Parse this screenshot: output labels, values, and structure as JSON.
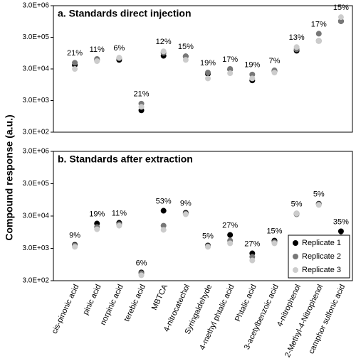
{
  "chart_data": [
    {
      "type": "scatter",
      "title": "a. Standards direct injection",
      "ylabel": "Compound response (a.u.)",
      "log_y": true,
      "ylim": [
        300,
        3000000
      ],
      "yticks": [
        {
          "value": 300,
          "label": "3.0E+02"
        },
        {
          "value": 3000,
          "label": "3.0E+03"
        },
        {
          "value": 30000,
          "label": "3.0E+04"
        },
        {
          "value": 300000,
          "label": "3.0E+05"
        },
        {
          "value": 3000000,
          "label": "3.0E+06"
        }
      ],
      "annotations": [
        "21%",
        "11%",
        "6%",
        "21%",
        "12%",
        "15%",
        "19%",
        "17%",
        "19%",
        "7%",
        "13%",
        "17%",
        "15%"
      ],
      "series": [
        {
          "name": "Replicate 1",
          "color": "#000000",
          "values": [
            40000,
            58000,
            58000,
            1470,
            78000,
            75000,
            21000,
            29000,
            13000,
            26000,
            113000,
            230000,
            970000
          ]
        },
        {
          "name": "Replicate 2",
          "color": "#777777",
          "values": [
            47000,
            62000,
            65000,
            2400,
            97000,
            75000,
            23000,
            30000,
            20000,
            27000,
            125000,
            390000,
            970000
          ]
        },
        {
          "name": "Replicate 3",
          "color": "#cccccc",
          "values": [
            30000,
            53000,
            68000,
            1900,
            108000,
            58000,
            15000,
            22000,
            15000,
            23000,
            147000,
            230000,
            1300000
          ]
        }
      ]
    },
    {
      "type": "scatter",
      "title": "b. Standards after extraction",
      "log_y": true,
      "legend": "lower right",
      "ylim": [
        300,
        3000000
      ],
      "yticks": [
        {
          "value": 300,
          "label": "3.0E+02"
        },
        {
          "value": 3000,
          "label": "3.0E+03"
        },
        {
          "value": 30000,
          "label": "3.0E+04"
        },
        {
          "value": 300000,
          "label": "3.0E+05"
        },
        {
          "value": 3000000,
          "label": "3.0E+06"
        }
      ],
      "categories": [
        "cis-pinonic acid",
        "pinic acid",
        "norpinic acid",
        "terebic acid",
        "MBTCA",
        "4-nitrocatechol",
        "Syringaldehyde",
        "4-methyl phtalic acid",
        "Phtalic acid",
        "3-acetylbenzoic acid",
        "4-nitrophenol",
        "2-Methyl-4-Nitrophenol",
        "camphor sulfonic acid"
      ],
      "annotations": [
        "9%",
        "19%",
        "11%",
        "6%",
        "53%",
        "9%",
        "5%",
        "27%",
        "27%",
        "15%",
        "5%",
        "5%",
        "35%"
      ],
      "series": [
        {
          "name": "Replicate 1",
          "color": "#000000",
          "values": [
            3870,
            17600,
            18500,
            540,
            43800,
            37700,
            3680,
            7800,
            2100,
            5200,
            35700,
            72000,
            10100
          ]
        },
        {
          "name": "Replicate 2",
          "color": "#777777",
          "values": [
            3680,
            13700,
            16800,
            510,
            15100,
            35700,
            3500,
            5200,
            1640,
            4700,
            34000,
            69000,
            6700
          ]
        },
        {
          "name": "Replicate 3",
          "color": "#cccccc",
          "values": [
            3350,
            11700,
            15100,
            440,
            11200,
            34000,
            3350,
            4300,
            1270,
            4300,
            35700,
            66000,
            4700
          ]
        }
      ]
    }
  ]
}
